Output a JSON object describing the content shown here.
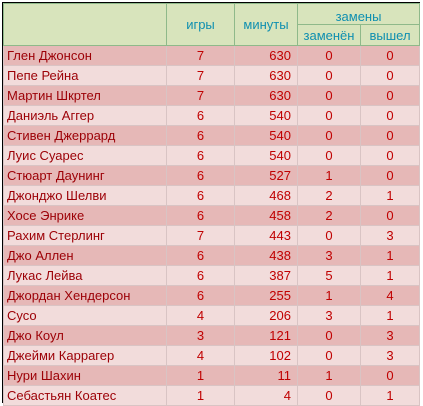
{
  "header": {
    "games": "игры",
    "minutes": "минуты",
    "subs": "замены",
    "subbed_off": "заменён",
    "subbed_on": "вышел"
  },
  "rows": [
    {
      "name": "Глен Джонсон",
      "games": "7",
      "minutes": "630",
      "off": "0",
      "on": "0"
    },
    {
      "name": "Пепе Рейна",
      "games": "7",
      "minutes": "630",
      "off": "0",
      "on": "0"
    },
    {
      "name": "Мартин Шкртел",
      "games": "7",
      "minutes": "630",
      "off": "0",
      "on": "0"
    },
    {
      "name": "Даниэль Аггер",
      "games": "6",
      "minutes": "540",
      "off": "0",
      "on": "0"
    },
    {
      "name": "Стивен Джеррард",
      "games": "6",
      "minutes": "540",
      "off": "0",
      "on": "0"
    },
    {
      "name": "Луис Суарес",
      "games": "6",
      "minutes": "540",
      "off": "0",
      "on": "0"
    },
    {
      "name": "Стюарт Даунинг",
      "games": "6",
      "minutes": "527",
      "off": "1",
      "on": "0"
    },
    {
      "name": "Джонджо Шелви",
      "games": "6",
      "minutes": "468",
      "off": "2",
      "on": "1"
    },
    {
      "name": "Хосе Энрике",
      "games": "6",
      "minutes": "458",
      "off": "2",
      "on": "0"
    },
    {
      "name": "Рахим Стерлинг",
      "games": "7",
      "minutes": "443",
      "off": "0",
      "on": "3"
    },
    {
      "name": "Джо Аллен",
      "games": "6",
      "minutes": "438",
      "off": "3",
      "on": "1"
    },
    {
      "name": "Лукас Лейва",
      "games": "6",
      "minutes": "387",
      "off": "5",
      "on": "1"
    },
    {
      "name": "Джордан Хендерсон",
      "games": "6",
      "minutes": "255",
      "off": "1",
      "on": "4"
    },
    {
      "name": "Сусо",
      "games": "4",
      "minutes": "206",
      "off": "3",
      "on": "1"
    },
    {
      "name": "Джо Коул",
      "games": "3",
      "minutes": "121",
      "off": "0",
      "on": "3"
    },
    {
      "name": "Джейми Каррагер",
      "games": "4",
      "minutes": "102",
      "off": "0",
      "on": "3"
    },
    {
      "name": "Нури Шахин",
      "games": "1",
      "minutes": "11",
      "off": "1",
      "on": "0"
    },
    {
      "name": "Себастьян Коатес",
      "games": "1",
      "minutes": "4",
      "off": "0",
      "on": "1"
    }
  ]
}
